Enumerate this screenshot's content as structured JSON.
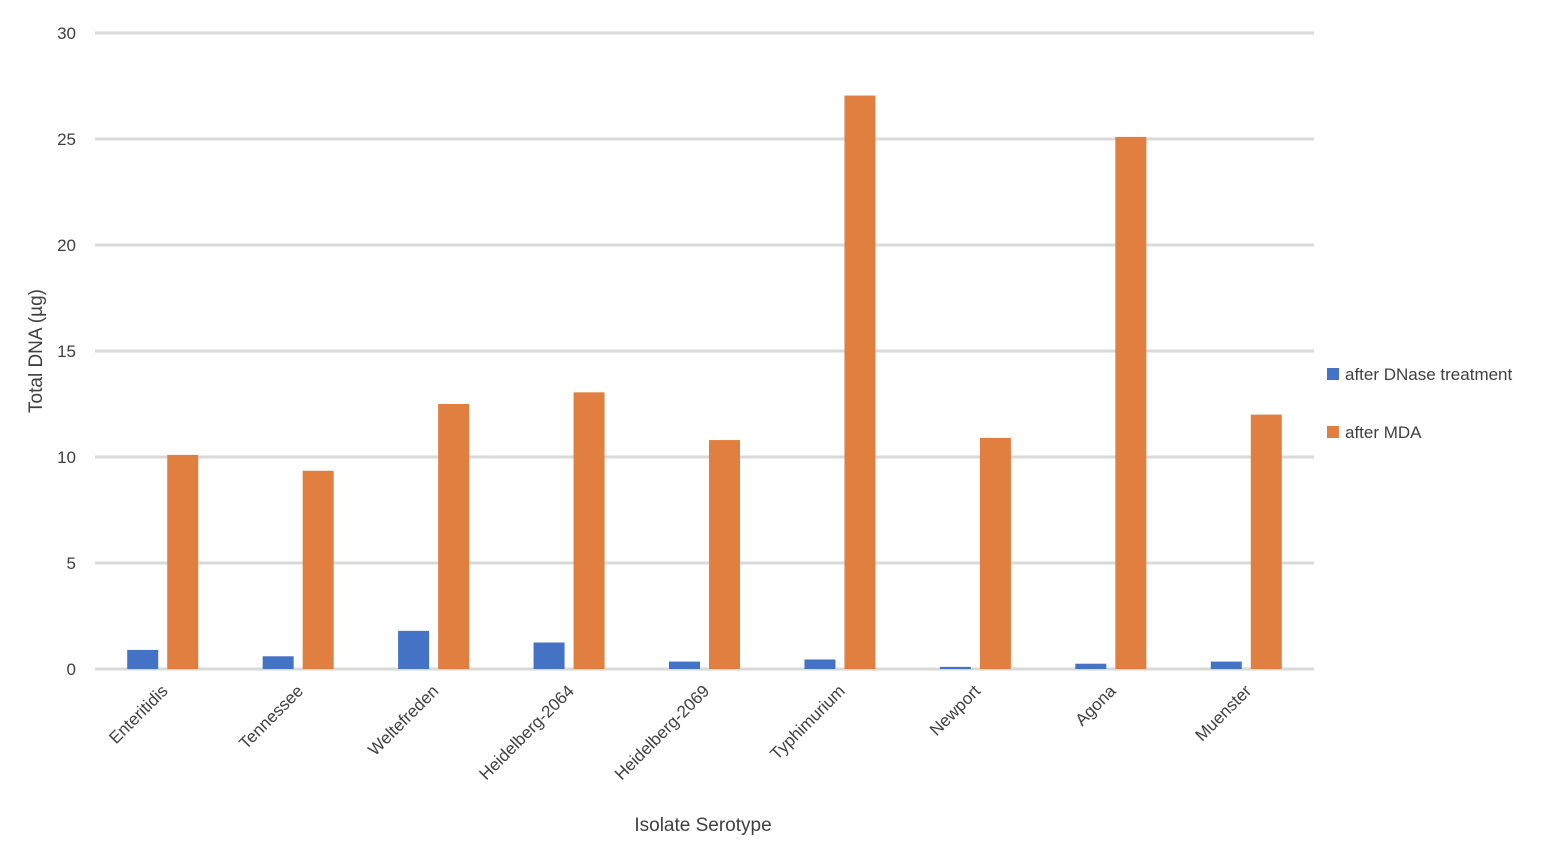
{
  "chart_data": {
    "type": "bar",
    "title": "",
    "xlabel": "Isolate Serotype",
    "ylabel": "Total DNA (µg)",
    "ylim": [
      0,
      30
    ],
    "yticks": [
      0,
      5,
      10,
      15,
      20,
      25,
      30
    ],
    "grid": true,
    "legend_position": "right",
    "categories": [
      "Enteritidis",
      "Tennessee",
      "Weltefreden",
      "Heidelberg-2064",
      "Heidelberg-2069",
      "Typhimurium",
      "Newport",
      "Agona",
      "Muenster"
    ],
    "series": [
      {
        "name": "after DNase treatment",
        "color": "#4472C4",
        "values": [
          0.9,
          0.6,
          1.8,
          1.25,
          0.35,
          0.45,
          0.1,
          0.25,
          0.35
        ]
      },
      {
        "name": "after MDA",
        "color": "#E07F3F",
        "values": [
          10.1,
          9.35,
          12.5,
          13.05,
          10.8,
          27.05,
          10.9,
          25.1,
          12.0
        ]
      }
    ]
  }
}
